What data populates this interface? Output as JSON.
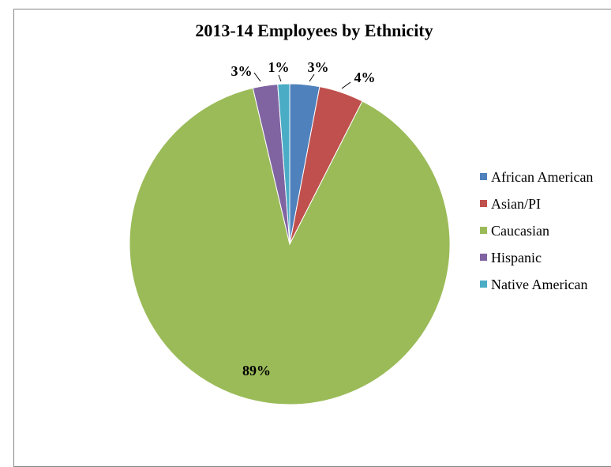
{
  "chart_data": {
    "type": "pie",
    "title": "2013-14 Employees by Ethnicity",
    "start_angle_deg": 0,
    "slices": [
      {
        "label": "African American",
        "value": 3,
        "display": "3%",
        "color": "#4F81BD"
      },
      {
        "label": "Asian/PI",
        "value": 4.5,
        "display": "4%",
        "color": "#C0504D"
      },
      {
        "label": "Caucasian",
        "value": 89,
        "display": "89%",
        "color": "#9BBB59"
      },
      {
        "label": "Hispanic",
        "value": 2.5,
        "display": "3%",
        "color": "#8064A2"
      },
      {
        "label": "Native American",
        "value": 1.2,
        "display": "1%",
        "color": "#4BACC6"
      }
    ],
    "legend_position": "right"
  }
}
